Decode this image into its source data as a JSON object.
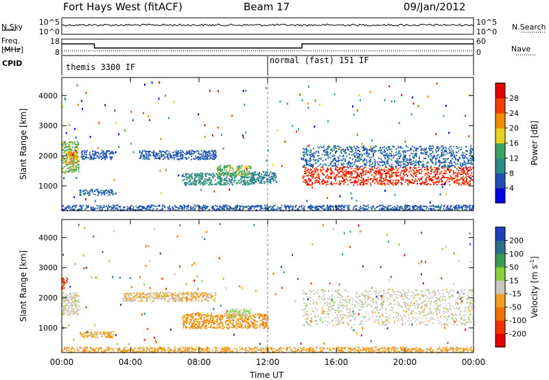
{
  "header": {
    "station": "Fort Hays West (fitACF)",
    "beam": "Beam 17",
    "date": "09/Jan/2012"
  },
  "noise_panel": {
    "left_label": "N.Sky",
    "right_label": "N.Search",
    "left_ticks": [
      "10^5",
      "10^0"
    ],
    "right_ticks": [
      "10^5",
      "10^0"
    ]
  },
  "freq_panel": {
    "left_label_1": "Freq.",
    "left_label_2": "[MHz]",
    "left_ticks": [
      "18",
      "8"
    ],
    "right_ticks": [
      "60",
      "0"
    ],
    "right_label": "Nave",
    "freq_steps": [
      [
        0.0,
        16
      ],
      [
        1.9,
        16
      ],
      [
        1.9,
        13
      ],
      [
        14.0,
        13
      ],
      [
        14.0,
        16
      ],
      [
        24.0,
        16
      ]
    ]
  },
  "cpid_panel": {
    "label": "CPID",
    "modes": [
      {
        "text": "themis 3300 IF",
        "start_ut": 0.0
      },
      {
        "text": "normal (fast) 151 IF",
        "start_ut": 12.0
      }
    ]
  },
  "axes": {
    "y_label": "Slant Range [km]",
    "y_ticks": [
      "1000",
      "2000",
      "3000",
      "4000"
    ],
    "x_ticks": [
      "00:00",
      "04:00",
      "08:00",
      "12:00",
      "16:00",
      "20:00",
      "00:00"
    ],
    "x_label": "Time UT"
  },
  "power_bar": {
    "label": "Power [dB]",
    "ticks": [
      "4",
      "8",
      "12",
      "16",
      "20",
      "24",
      "28"
    ],
    "colors": [
      "#0000e0",
      "#1f4fb4",
      "#2f8a8a",
      "#3fa060",
      "#e8d020",
      "#f08a00",
      "#f04000",
      "#e00000"
    ]
  },
  "velocity_bar": {
    "label": "Velocity [m s",
    "label_sup": "-1",
    "label_end": "]",
    "ticks": [
      "200",
      "100",
      "50",
      "15",
      "-15",
      "-50",
      "-100",
      "-200"
    ],
    "colors": [
      "#1f3fb8",
      "#2a6e8a",
      "#3c9a50",
      "#86d040",
      "#c8c8bc",
      "#f0a020",
      "#f07000",
      "#f03000",
      "#e00000"
    ]
  },
  "chart_data": [
    {
      "type": "heatmap",
      "title": "",
      "xlabel": "Time UT",
      "ylabel": "Slant Range [km]",
      "xlim": [
        0,
        24
      ],
      "ylim": [
        180,
        4600
      ],
      "colorbar": "Power [dB]",
      "color_range": [
        0,
        30
      ],
      "echo_regions": [
        {
          "t0": 0.0,
          "t1": 1.0,
          "r0": 1450,
          "r1": 2500,
          "value": 14
        },
        {
          "t0": 0.2,
          "t1": 0.9,
          "r0": 1750,
          "r1": 2150,
          "value": 20
        },
        {
          "t0": 1.1,
          "t1": 3.0,
          "r0": 1900,
          "r1": 2200,
          "value": 6
        },
        {
          "t0": 1.0,
          "t1": 3.0,
          "r0": 700,
          "r1": 900,
          "value": 7
        },
        {
          "t0": 4.5,
          "t1": 9.0,
          "r0": 1900,
          "r1": 2200,
          "value": 6
        },
        {
          "t0": 7.0,
          "t1": 11.2,
          "r0": 1050,
          "r1": 1450,
          "value": 10
        },
        {
          "t0": 9.0,
          "t1": 11.0,
          "r0": 1350,
          "r1": 1700,
          "value": 14
        },
        {
          "t0": 11.0,
          "t1": 12.5,
          "r0": 1100,
          "r1": 1500,
          "value": 9
        },
        {
          "t0": 14.0,
          "t1": 24.0,
          "r0": 1050,
          "r1": 1650,
          "value": 26
        },
        {
          "t0": 14.0,
          "t1": 24.0,
          "r0": 1650,
          "r1": 2350,
          "value": 7
        },
        {
          "t0": 0.0,
          "t1": 24.0,
          "r0": 200,
          "r1": 380,
          "value": 6
        }
      ]
    },
    {
      "type": "heatmap",
      "title": "",
      "xlabel": "Time UT",
      "ylabel": "Slant Range [km]",
      "xlim": [
        0,
        24
      ],
      "ylim": [
        180,
        4600
      ],
      "colorbar": "Velocity [m s-1]",
      "color_range": [
        -200,
        200
      ],
      "echo_regions": [
        {
          "t0": 0.0,
          "t1": 1.0,
          "r0": 1450,
          "r1": 2200,
          "value": 0
        },
        {
          "t0": 0.0,
          "t1": 0.3,
          "r0": 2300,
          "r1": 2700,
          "value": -150
        },
        {
          "t0": 1.0,
          "t1": 3.0,
          "r0": 700,
          "r1": 900,
          "value": -50
        },
        {
          "t0": 3.5,
          "t1": 9.0,
          "r0": 1900,
          "r1": 2200,
          "value": -30
        },
        {
          "t0": 7.0,
          "t1": 12.0,
          "r0": 1000,
          "r1": 1500,
          "value": -60
        },
        {
          "t0": 9.5,
          "t1": 11.0,
          "r0": 1350,
          "r1": 1650,
          "value": 30
        },
        {
          "t0": 14.0,
          "t1": 24.0,
          "r0": 1100,
          "r1": 2300,
          "value": 0
        },
        {
          "t0": 0.0,
          "t1": 24.0,
          "r0": 200,
          "r1": 380,
          "value": -50
        }
      ]
    }
  ]
}
